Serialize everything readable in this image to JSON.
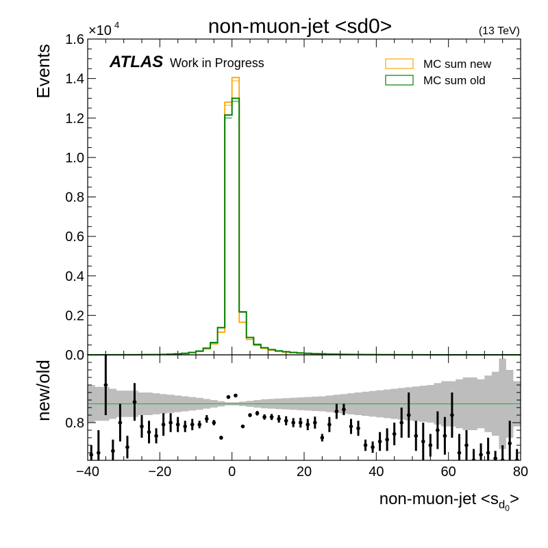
{
  "chart_data": [
    {
      "type": "line",
      "title": "non-muon-jet <sd0>",
      "energy_label": "(13 TeV)",
      "experiment": "ATLAS",
      "status": "Work in Progress",
      "ylabel": "Events",
      "exponent_label": "×10",
      "exponent_power": "4",
      "xlim": [
        -40,
        80
      ],
      "ylim": [
        0,
        16000
      ],
      "y_ticks": [
        0,
        2000,
        4000,
        6000,
        8000,
        10000,
        12000,
        14000,
        16000
      ],
      "y_tick_labels": [
        "0.0",
        "0.2",
        "0.4",
        "0.6",
        "0.8",
        "1.0",
        "1.2",
        "1.4",
        "1.6"
      ],
      "legend_position": "top-right",
      "bin_edges": [
        -40,
        -38,
        -36,
        -34,
        -32,
        -30,
        -28,
        -26,
        -24,
        -22,
        -20,
        -18,
        -16,
        -14,
        -12,
        -10,
        -8,
        -6,
        -4,
        -2,
        0,
        2,
        4,
        6,
        8,
        10,
        12,
        14,
        16,
        18,
        20,
        22,
        24,
        26,
        28,
        30,
        32,
        34,
        36,
        38,
        40,
        42,
        44,
        46,
        48,
        50,
        52,
        54,
        56,
        58,
        60,
        62,
        64,
        66,
        68,
        70,
        72,
        74,
        76,
        78,
        80
      ],
      "series": [
        {
          "name": "MC sum new",
          "color": "#ffa500",
          "values": [
            2,
            2,
            3,
            3,
            4,
            5,
            6,
            8,
            10,
            14,
            20,
            30,
            45,
            70,
            110,
            170,
            300,
            550,
            1150,
            12800,
            14050,
            1650,
            780,
            480,
            330,
            240,
            180,
            140,
            110,
            90,
            70,
            55,
            45,
            38,
            32,
            26,
            21,
            17,
            14,
            11,
            9,
            7,
            6,
            5,
            4,
            3,
            3,
            2,
            2,
            2,
            1,
            1,
            1,
            1,
            1,
            1,
            1,
            1,
            1,
            1
          ]
        },
        {
          "name": "MC sum old",
          "color": "#008000",
          "values": [
            2,
            2,
            3,
            3,
            4,
            5,
            6,
            8,
            11,
            15,
            22,
            33,
            50,
            78,
            122,
            190,
            340,
            620,
            1380,
            12150,
            13000,
            2180,
            880,
            530,
            360,
            265,
            200,
            155,
            120,
            96,
            78,
            62,
            50,
            41,
            34,
            28,
            22,
            18,
            15,
            12,
            10,
            8,
            6,
            5,
            4,
            3,
            3,
            2,
            2,
            2,
            1,
            1,
            1,
            1,
            1,
            1,
            1,
            1,
            1,
            1
          ]
        }
      ]
    },
    {
      "type": "scatter",
      "ylabel": "new/old",
      "xlabel_main": "non-muon-jet <s",
      "xlabel_sub": "d",
      "xlabel_subsub": "0",
      "xlabel_end": ">",
      "xlim": [
        -40,
        80
      ],
      "ylim": [
        0.7,
        0.98
      ],
      "y_ticks": [
        0.8
      ],
      "y_tick_labels": [
        "0.8"
      ],
      "x_ticks": [
        -40,
        -20,
        0,
        20,
        40,
        60,
        80
      ],
      "x_tick_labels": [
        "−40",
        "−20",
        "0",
        "20",
        "40",
        "60",
        "80"
      ],
      "reference_line": 0.85,
      "reference_color": "#3cb043",
      "band_color": "#bdbdbd",
      "band_half_width": [
        0.05,
        0.045,
        0.045,
        0.04,
        0.035,
        0.035,
        0.035,
        0.03,
        0.03,
        0.028,
        0.026,
        0.024,
        0.022,
        0.02,
        0.018,
        0.016,
        0.013,
        0.01,
        0.007,
        0.004,
        0.004,
        0.006,
        0.008,
        0.01,
        0.012,
        0.013,
        0.014,
        0.015,
        0.016,
        0.017,
        0.018,
        0.019,
        0.02,
        0.022,
        0.024,
        0.026,
        0.028,
        0.03,
        0.032,
        0.034,
        0.036,
        0.038,
        0.04,
        0.042,
        0.044,
        0.046,
        0.048,
        0.05,
        0.055,
        0.06,
        0.06,
        0.065,
        0.07,
        0.07,
        0.065,
        0.075,
        0.085,
        0.12,
        0.09,
        0.06
      ],
      "points": [
        {
          "x": -39,
          "y": 0.715,
          "err": 0.025
        },
        {
          "x": -37,
          "y": 0.72,
          "err": 0.06
        },
        {
          "x": -35,
          "y": 0.9,
          "err": 0.08
        },
        {
          "x": -33,
          "y": 0.725,
          "err": 0.03
        },
        {
          "x": -31,
          "y": 0.8,
          "err": 0.05
        },
        {
          "x": -29,
          "y": 0.735,
          "err": 0.03
        },
        {
          "x": -27,
          "y": 0.855,
          "err": 0.05
        },
        {
          "x": -25,
          "y": 0.79,
          "err": 0.03
        },
        {
          "x": -23,
          "y": 0.775,
          "err": 0.03
        },
        {
          "x": -21,
          "y": 0.765,
          "err": 0.02
        },
        {
          "x": -19,
          "y": 0.795,
          "err": 0.03
        },
        {
          "x": -17,
          "y": 0.8,
          "err": 0.025
        },
        {
          "x": -15,
          "y": 0.795,
          "err": 0.02
        },
        {
          "x": -13,
          "y": 0.79,
          "err": 0.015
        },
        {
          "x": -11,
          "y": 0.795,
          "err": 0.015
        },
        {
          "x": -9,
          "y": 0.795,
          "err": 0.01
        },
        {
          "x": -7,
          "y": 0.81,
          "err": 0.01
        },
        {
          "x": -5,
          "y": 0.8,
          "err": 0.007
        },
        {
          "x": -3,
          "y": 0.76,
          "err": 0.005
        },
        {
          "x": -1,
          "y": 0.868,
          "err": 0.003
        },
        {
          "x": 1,
          "y": 0.872,
          "err": 0.003
        },
        {
          "x": 3,
          "y": 0.79,
          "err": 0.004
        },
        {
          "x": 5,
          "y": 0.82,
          "err": 0.005
        },
        {
          "x": 7,
          "y": 0.825,
          "err": 0.006
        },
        {
          "x": 9,
          "y": 0.815,
          "err": 0.007
        },
        {
          "x": 11,
          "y": 0.815,
          "err": 0.008
        },
        {
          "x": 13,
          "y": 0.81,
          "err": 0.01
        },
        {
          "x": 15,
          "y": 0.805,
          "err": 0.012
        },
        {
          "x": 17,
          "y": 0.8,
          "err": 0.012
        },
        {
          "x": 19,
          "y": 0.8,
          "err": 0.013
        },
        {
          "x": 21,
          "y": 0.795,
          "err": 0.015
        },
        {
          "x": 23,
          "y": 0.8,
          "err": 0.016
        },
        {
          "x": 25,
          "y": 0.76,
          "err": 0.01
        },
        {
          "x": 27,
          "y": 0.795,
          "err": 0.02
        },
        {
          "x": 29,
          "y": 0.83,
          "err": 0.02
        },
        {
          "x": 31,
          "y": 0.835,
          "err": 0.015
        },
        {
          "x": 33,
          "y": 0.79,
          "err": 0.02
        },
        {
          "x": 35,
          "y": 0.785,
          "err": 0.02
        },
        {
          "x": 37,
          "y": 0.74,
          "err": 0.015
        },
        {
          "x": 39,
          "y": 0.735,
          "err": 0.015
        },
        {
          "x": 41,
          "y": 0.75,
          "err": 0.025
        },
        {
          "x": 43,
          "y": 0.755,
          "err": 0.03
        },
        {
          "x": 45,
          "y": 0.77,
          "err": 0.03
        },
        {
          "x": 47,
          "y": 0.8,
          "err": 0.04
        },
        {
          "x": 49,
          "y": 0.82,
          "err": 0.06
        },
        {
          "x": 51,
          "y": 0.765,
          "err": 0.04
        },
        {
          "x": 53,
          "y": 0.75,
          "err": 0.05
        },
        {
          "x": 55,
          "y": 0.74,
          "err": 0.03
        },
        {
          "x": 57,
          "y": 0.78,
          "err": 0.05
        },
        {
          "x": 59,
          "y": 0.765,
          "err": 0.05
        },
        {
          "x": 61,
          "y": 0.82,
          "err": 0.06
        },
        {
          "x": 63,
          "y": 0.72,
          "err": 0.05
        },
        {
          "x": 65,
          "y": 0.74,
          "err": 0.04
        },
        {
          "x": 67,
          "y": 0.7,
          "err": 0.03
        },
        {
          "x": 69,
          "y": 0.715,
          "err": 0.03
        },
        {
          "x": 71,
          "y": 0.72,
          "err": 0.04
        },
        {
          "x": 73,
          "y": 0.705,
          "err": 0.02
        },
        {
          "x": 75,
          "y": 0.7,
          "err": 0.04
        },
        {
          "x": 77,
          "y": 0.745,
          "err": 0.06
        },
        {
          "x": 79,
          "y": 0.7,
          "err": 0.03
        }
      ]
    }
  ]
}
